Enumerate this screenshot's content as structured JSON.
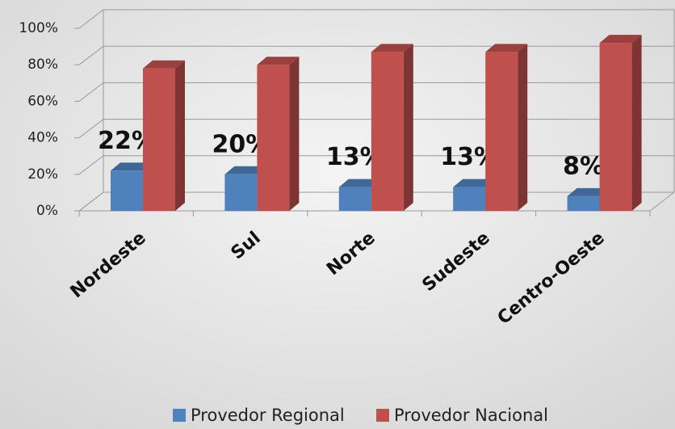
{
  "chart_data": {
    "type": "bar",
    "categories": [
      "Nordeste",
      "Sul",
      "Norte",
      "Sudeste",
      "Centro-Oeste"
    ],
    "series": [
      {
        "name": "Provedor Regional",
        "color": "#4f81bd",
        "values": [
          22,
          20,
          13,
          13,
          8
        ],
        "value_labels": [
          "22%",
          "20%",
          "13%",
          "13%",
          "8%"
        ]
      },
      {
        "name": "Provedor Nacional",
        "color": "#c0504d",
        "values": [
          78,
          80,
          87,
          87,
          92
        ]
      }
    ],
    "ylim": [
      0,
      100
    ],
    "yticks": [
      {
        "value": 0,
        "label": "0%"
      },
      {
        "value": 20,
        "label": "20%"
      },
      {
        "value": 40,
        "label": "40%"
      },
      {
        "value": 60,
        "label": "60%"
      },
      {
        "value": 80,
        "label": "80%"
      },
      {
        "value": 100,
        "label": "100%"
      }
    ],
    "grid": true,
    "legend": "bottom"
  }
}
